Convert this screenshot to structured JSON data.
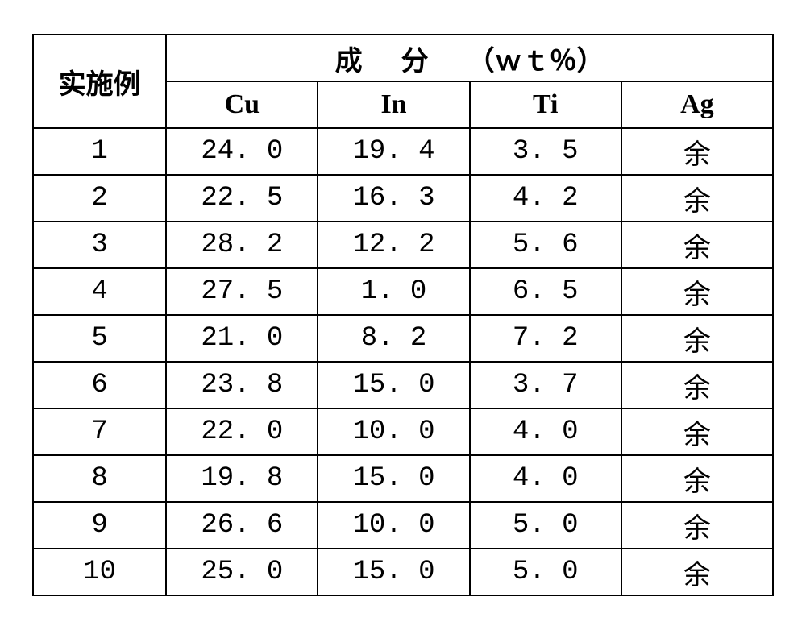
{
  "table": {
    "row_header": "实施例",
    "group_header_parts": [
      "成",
      "分",
      "（ｗｔ％）"
    ],
    "columns": [
      "Cu",
      "In",
      "Ti",
      "Ag"
    ],
    "rows": [
      {
        "idx": "1",
        "cu": "24. 0",
        "in": "19. 4",
        "ti": "3. 5",
        "ag": "余"
      },
      {
        "idx": "2",
        "cu": "22. 5",
        "in": "16. 3",
        "ti": "4. 2",
        "ag": "余"
      },
      {
        "idx": "3",
        "cu": "28. 2",
        "in": "12. 2",
        "ti": "5. 6",
        "ag": "余"
      },
      {
        "idx": "4",
        "cu": "27. 5",
        "in": "1. 0",
        "ti": "6. 5",
        "ag": "余"
      },
      {
        "idx": "5",
        "cu": "21. 0",
        "in": "8. 2",
        "ti": "7. 2",
        "ag": "余"
      },
      {
        "idx": "6",
        "cu": "23. 8",
        "in": "15. 0",
        "ti": "3. 7",
        "ag": "余"
      },
      {
        "idx": "7",
        "cu": "22. 0",
        "in": "10. 0",
        "ti": "4. 0",
        "ag": "余"
      },
      {
        "idx": "8",
        "cu": "19. 8",
        "in": "15. 0",
        "ti": "4. 0",
        "ag": "余"
      },
      {
        "idx": "9",
        "cu": "26. 6",
        "in": "10. 0",
        "ti": "5. 0",
        "ag": "余"
      },
      {
        "idx": "10",
        "cu": "25. 0",
        "in": "15. 0",
        "ti": "5. 0",
        "ag": "余"
      }
    ],
    "col_widths_pct": [
      18,
      20.5,
      20.5,
      20.5,
      20.5
    ]
  }
}
